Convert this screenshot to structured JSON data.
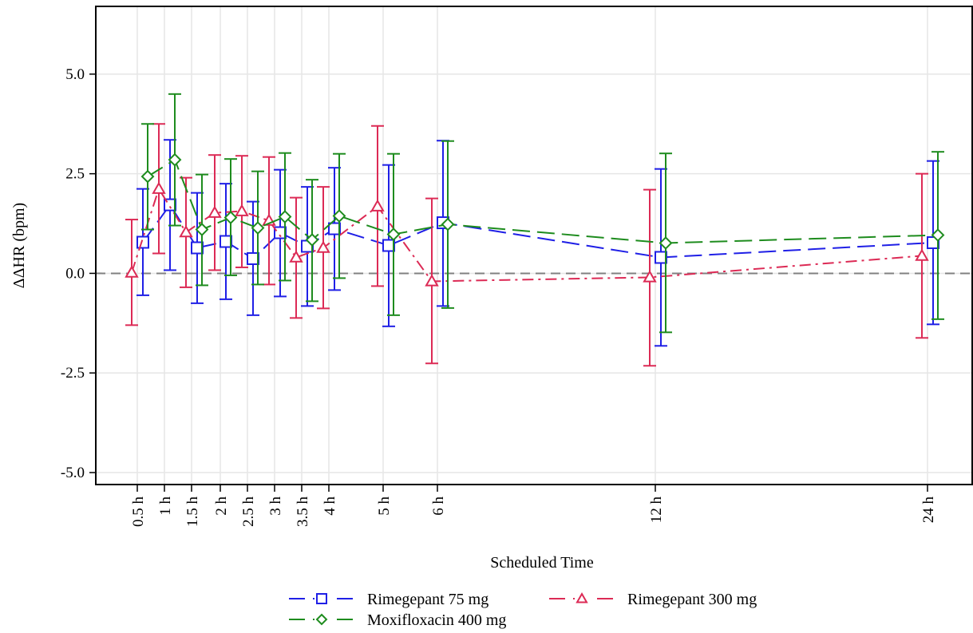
{
  "chart_data": {
    "type": "line",
    "title": "",
    "xlabel": "Scheduled Time",
    "ylabel": "ΔΔHR (bpm)",
    "x_hours": [
      0.5,
      1,
      1.5,
      2,
      2.5,
      3,
      3.5,
      4,
      5,
      6,
      12,
      24
    ],
    "x_tick_labels": [
      "0.5 h",
      "1 h",
      "1.5 h",
      "2 h",
      "2.5 h",
      "3 h",
      "3.5 h",
      "4 h",
      "5 h",
      "6 h",
      "12 h",
      "24 h"
    ],
    "y_ticks": [
      5.0,
      2.5,
      0.0,
      -2.5,
      -5.0
    ],
    "y_tick_labels": [
      "5.0",
      "2.5",
      "0.0",
      "-2.5",
      "-5.0"
    ],
    "ylim": [
      -5.3,
      6.7
    ],
    "reference_line": 0,
    "legend_placement": "bottom",
    "series": [
      {
        "name": "Rimegepant 75 mg",
        "color": "#1f1fe6",
        "marker": "square",
        "line_style": "long-dash",
        "x_hours": [
          0.5,
          1,
          1.5,
          2,
          2.5,
          3,
          3.5,
          4,
          5,
          6,
          12,
          24
        ],
        "values": [
          0.78,
          1.72,
          0.64,
          0.8,
          0.37,
          1.02,
          0.68,
          1.12,
          0.7,
          1.27,
          0.4,
          0.77
        ],
        "lower": [
          -0.55,
          0.08,
          -0.75,
          -0.65,
          -1.05,
          -0.58,
          -0.82,
          -0.42,
          -1.33,
          -0.82,
          -1.82,
          -1.28
        ],
        "upper": [
          2.12,
          3.35,
          2.02,
          2.25,
          1.8,
          2.6,
          2.17,
          2.65,
          2.72,
          3.33,
          2.62,
          2.82
        ]
      },
      {
        "name": "Rimegepant 300 mg",
        "color": "#dc2a55",
        "marker": "triangle",
        "line_style": "dash-dot",
        "x_hours": [
          0.5,
          1,
          1.5,
          2,
          2.5,
          3,
          3.5,
          4,
          5,
          6,
          12,
          24
        ],
        "values": [
          0.02,
          2.12,
          1.03,
          1.52,
          1.56,
          1.32,
          0.4,
          0.64,
          1.68,
          -0.2,
          -0.1,
          0.44
        ],
        "lower": [
          -1.3,
          0.5,
          -0.35,
          0.08,
          0.15,
          -0.28,
          -1.12,
          -0.88,
          -0.32,
          -2.26,
          -2.32,
          -1.62
        ],
        "upper": [
          1.35,
          3.75,
          2.4,
          2.97,
          2.95,
          2.92,
          1.9,
          2.17,
          3.7,
          1.88,
          2.1,
          2.5
        ]
      },
      {
        "name": "Moxifloxacin 400 mg",
        "color": "#1e8c1e",
        "marker": "diamond",
        "line_style": "long-dash",
        "x_hours": [
          0.5,
          1,
          1.5,
          2,
          2.5,
          3,
          3.5,
          4,
          5,
          6,
          12,
          24
        ],
        "values": [
          2.43,
          2.85,
          1.1,
          1.4,
          1.14,
          1.42,
          0.84,
          1.44,
          0.98,
          1.23,
          0.76,
          0.96
        ],
        "lower": [
          1.1,
          1.2,
          -0.3,
          -0.05,
          -0.28,
          -0.18,
          -0.7,
          -0.12,
          -1.05,
          -0.87,
          -1.48,
          -1.15
        ],
        "upper": [
          3.75,
          4.5,
          2.48,
          2.87,
          2.56,
          3.02,
          2.35,
          3.0,
          3.0,
          3.32,
          3.01,
          3.05
        ]
      }
    ]
  }
}
